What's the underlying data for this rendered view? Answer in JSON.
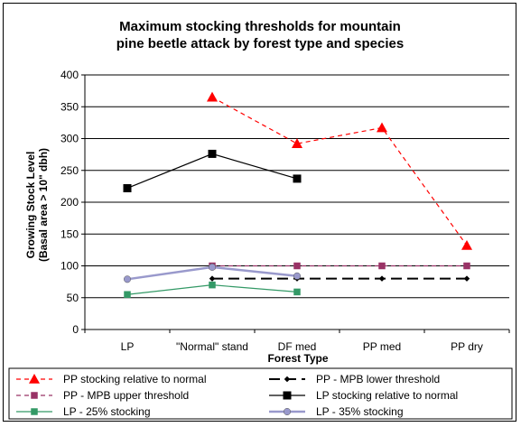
{
  "chart_data": {
    "type": "line",
    "title_lines": [
      "Maximum stocking thresholds for mountain",
      "pine beetle attack by forest type and species"
    ],
    "xlabel": "Forest Type",
    "ylabel_lines": [
      "Growing Stock Level",
      "(Basal area > 10\" dbh)"
    ],
    "categories": [
      "LP",
      "\"Normal\" stand",
      "DF med",
      "PP med",
      "PP dry"
    ],
    "ylim": [
      0,
      400
    ],
    "yticks": [
      "0",
      "50",
      "100",
      "150",
      "200",
      "250",
      "300",
      "350",
      "400"
    ],
    "grid": true,
    "legend_position": "bottom",
    "series": [
      {
        "name": "PP stocking relative to normal",
        "color": "#ff0000",
        "dash": "dashed",
        "marker": "triangle",
        "values": [
          null,
          365,
          292,
          317,
          132
        ]
      },
      {
        "name": "PP - MPB lower threshold",
        "color": "#000000",
        "dash": "long-dash",
        "marker": "diamond",
        "values": [
          null,
          80,
          80,
          80,
          80
        ]
      },
      {
        "name": "PP - MPB upper threshold",
        "color": "#993366",
        "dash": "dashed",
        "marker": "square",
        "values": [
          null,
          100,
          100,
          100,
          100
        ]
      },
      {
        "name": "LP stocking relative to normal",
        "color": "#000000",
        "dash": "solid",
        "marker": "square",
        "values": [
          222,
          276,
          237,
          null,
          null
        ]
      },
      {
        "name": "LP - 25% stocking",
        "color": "#339966",
        "dash": "solid",
        "marker": "square",
        "values": [
          55,
          70,
          59,
          null,
          null
        ]
      },
      {
        "name": "LP - 35% stocking",
        "color": "#9999cc",
        "dash": "solid",
        "marker": "circle",
        "values": [
          79,
          98,
          84,
          null,
          null
        ]
      }
    ]
  }
}
